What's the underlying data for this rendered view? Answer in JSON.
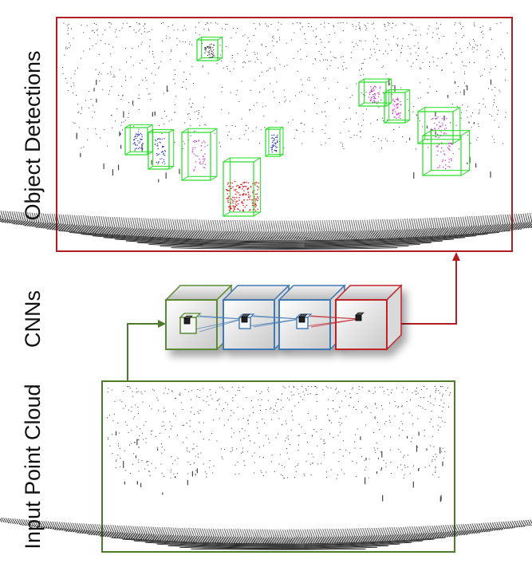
{
  "labels": {
    "detections": "Object Detections",
    "cnns": "CNNs",
    "input": "Input Point Cloud"
  },
  "colors": {
    "detection_frame": "#b01e23",
    "input_frame": "#4e7a2c",
    "cnn_input_cube": "#5a8a34",
    "cnn_hidden_cube": "#3f78b4",
    "cnn_output_cube": "#c0242b",
    "box_green": "#22dd22",
    "car_points": "#dd1111",
    "pedestrian_points": "#2233bb",
    "cyclist_points": "#cc22cc"
  },
  "detections": [
    {
      "kind": "car",
      "points": "car-points"
    },
    {
      "kind": "pedestrian",
      "points": "pedestrian-points"
    },
    {
      "kind": "pedestrian",
      "points": "pedestrian-points"
    },
    {
      "kind": "cyclist",
      "points": "cyclist-points"
    },
    {
      "kind": "pedestrian",
      "points": "pedestrian-points"
    },
    {
      "kind": "cyclist",
      "points": "cyclist-points"
    },
    {
      "kind": "cyclist",
      "points": "cyclist-points"
    },
    {
      "kind": "cyclist",
      "points": "cyclist-points"
    },
    {
      "kind": "cyclist",
      "points": "cyclist-points"
    },
    {
      "kind": "unknown",
      "points": "sparse-points"
    }
  ]
}
